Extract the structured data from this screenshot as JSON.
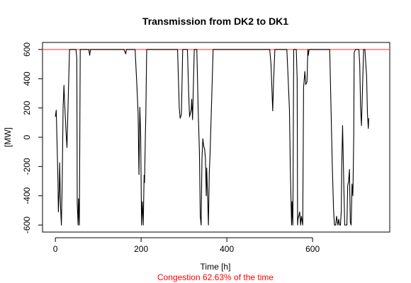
{
  "chart_data": {
    "type": "line",
    "title": "Transmission from DK2 to DK1",
    "xlabel": "Time [h]",
    "ylabel": "[MW]",
    "subtitle": "Congestion 62.63% of the time",
    "subtitle_color": "#ff0000",
    "reference_line": {
      "y": 600,
      "color": "#ff6666"
    },
    "line_color": "#000000",
    "xlim": [
      -30,
      780
    ],
    "ylim": [
      -648,
      648
    ],
    "x_ticks": [
      0,
      200,
      400,
      600
    ],
    "y_ticks": [
      -600,
      -400,
      -200,
      0,
      200,
      400,
      600
    ],
    "grid": false,
    "series": [
      {
        "points": [
          [
            0,
            140
          ],
          [
            2,
            185
          ],
          [
            4,
            -50
          ],
          [
            6,
            -300
          ],
          [
            7,
            -510
          ],
          [
            9,
            -360
          ],
          [
            10,
            -175
          ],
          [
            12,
            -470
          ],
          [
            14,
            -600
          ],
          [
            16,
            -300
          ],
          [
            18,
            200
          ],
          [
            20,
            355
          ],
          [
            22,
            210
          ],
          [
            25,
            30
          ],
          [
            27,
            -70
          ],
          [
            29,
            150
          ],
          [
            31,
            380
          ],
          [
            33,
            600
          ],
          [
            48,
            600
          ],
          [
            50,
            540
          ],
          [
            51,
            -450
          ],
          [
            53,
            -600
          ],
          [
            54,
            -420
          ],
          [
            56,
            -600
          ],
          [
            58,
            600
          ],
          [
            70,
            600
          ],
          [
            78,
            600
          ],
          [
            80,
            560
          ],
          [
            82,
            600
          ],
          [
            160,
            600
          ],
          [
            164,
            570
          ],
          [
            166,
            600
          ],
          [
            186,
            600
          ],
          [
            190,
            360
          ],
          [
            193,
            160
          ],
          [
            195,
            -255
          ],
          [
            197,
            205
          ],
          [
            199,
            10
          ],
          [
            201,
            -600
          ],
          [
            203,
            -440
          ],
          [
            205,
            -600
          ],
          [
            207,
            -260
          ],
          [
            208,
            -310
          ],
          [
            210,
            20
          ],
          [
            211,
            150
          ],
          [
            213,
            600
          ],
          [
            285,
            600
          ],
          [
            289,
            200
          ],
          [
            291,
            130
          ],
          [
            294,
            155
          ],
          [
            297,
            600
          ],
          [
            308,
            600
          ],
          [
            311,
            300
          ],
          [
            313,
            140
          ],
          [
            317,
            190
          ],
          [
            318,
            260
          ],
          [
            320,
            120
          ],
          [
            324,
            600
          ],
          [
            330,
            600
          ],
          [
            333,
            200
          ],
          [
            336,
            -100
          ],
          [
            338,
            -540
          ],
          [
            340,
            -600
          ],
          [
            342,
            -140
          ],
          [
            344,
            -10
          ],
          [
            346,
            -60
          ],
          [
            348,
            -80
          ],
          [
            350,
            -140
          ],
          [
            352,
            -400
          ],
          [
            353,
            -210
          ],
          [
            355,
            -390
          ],
          [
            357,
            -600
          ],
          [
            359,
            -250
          ],
          [
            361,
            -100
          ],
          [
            364,
            200
          ],
          [
            368,
            600
          ],
          [
            500,
            600
          ],
          [
            503,
            500
          ],
          [
            507,
            180
          ],
          [
            509,
            380
          ],
          [
            512,
            600
          ],
          [
            540,
            600
          ],
          [
            543,
            400
          ],
          [
            546,
            190
          ],
          [
            548,
            -200
          ],
          [
            551,
            -600
          ],
          [
            552,
            -440
          ],
          [
            554,
            -600
          ],
          [
            556,
            600
          ],
          [
            562,
            600
          ],
          [
            564,
            400
          ],
          [
            565,
            -600
          ],
          [
            566,
            -560
          ],
          [
            570,
            -510
          ],
          [
            572,
            -600
          ],
          [
            574,
            -540
          ],
          [
            577,
            -600
          ],
          [
            579,
            340
          ],
          [
            582,
            450
          ],
          [
            584,
            360
          ],
          [
            587,
            380
          ],
          [
            589,
            600
          ],
          [
            590,
            560
          ],
          [
            592,
            600
          ],
          [
            640,
            600
          ],
          [
            643,
            200
          ],
          [
            646,
            -200
          ],
          [
            649,
            -500
          ],
          [
            651,
            -600
          ],
          [
            654,
            -600
          ],
          [
            656,
            -540
          ],
          [
            659,
            -600
          ],
          [
            661,
            -560
          ],
          [
            663,
            -600
          ],
          [
            665,
            -600
          ],
          [
            667,
            -500
          ],
          [
            668,
            -200
          ],
          [
            670,
            80
          ],
          [
            673,
            -350
          ],
          [
            675,
            -600
          ],
          [
            680,
            -600
          ],
          [
            682,
            -330
          ],
          [
            684,
            -300
          ],
          [
            686,
            -220
          ],
          [
            688,
            -580
          ],
          [
            690,
            -600
          ],
          [
            692,
            -320
          ],
          [
            694,
            -400
          ],
          [
            696,
            0
          ],
          [
            697,
            580
          ],
          [
            700,
            600
          ],
          [
            708,
            600
          ],
          [
            710,
            500
          ],
          [
            712,
            200
          ],
          [
            714,
            80
          ],
          [
            716,
            280
          ],
          [
            719,
            600
          ],
          [
            722,
            600
          ],
          [
            726,
            420
          ],
          [
            728,
            160
          ],
          [
            730,
            60
          ],
          [
            731,
            130
          ]
        ]
      }
    ]
  }
}
